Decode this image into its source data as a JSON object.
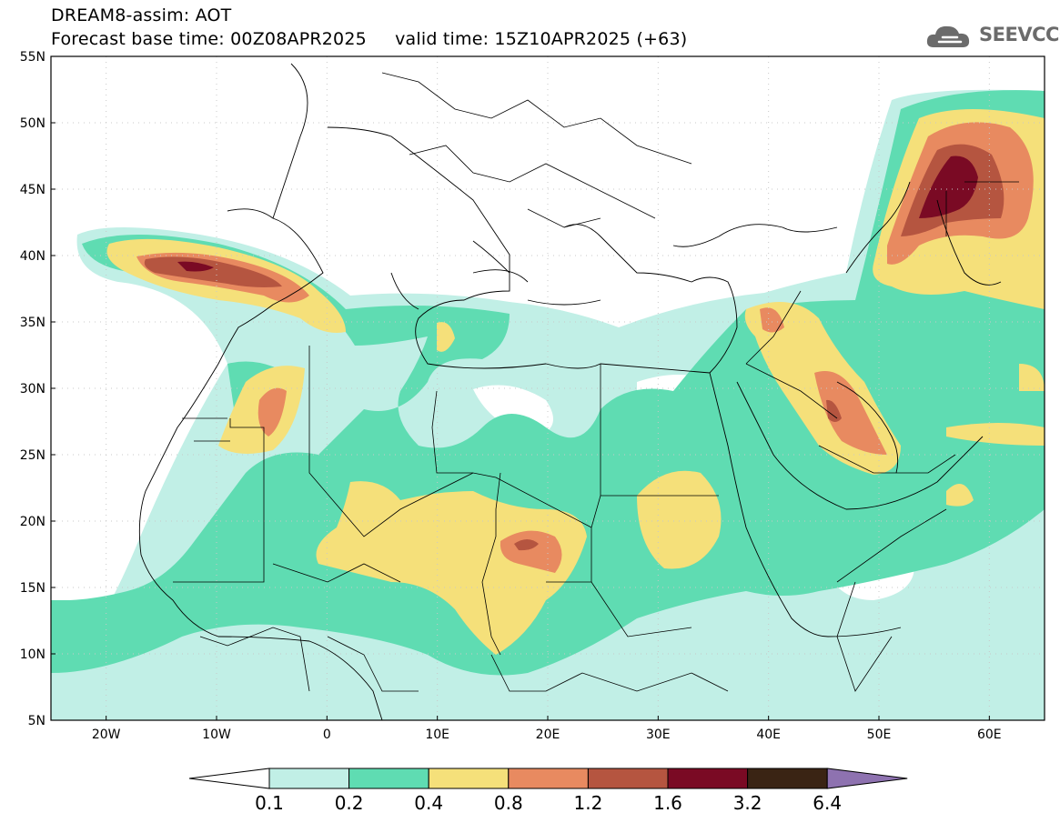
{
  "title": {
    "line1": "DREAM8-assim: AOT",
    "line2": "Forecast base time: 00Z08APR2025     valid time: 15Z10APR2025 (+63)"
  },
  "logo": {
    "text": "SEEVCCC",
    "icon": "cloud-logo-icon"
  },
  "axes": {
    "lat_labels": [
      "55N",
      "50N",
      "45N",
      "40N",
      "35N",
      "30N",
      "25N",
      "20N",
      "15N",
      "10N",
      "5N"
    ],
    "lat_values": [
      55,
      50,
      45,
      40,
      35,
      30,
      25,
      20,
      15,
      10,
      5
    ],
    "lon_labels": [
      "20W",
      "10W",
      "0",
      "10E",
      "20E",
      "30E",
      "40E",
      "50E",
      "60E"
    ],
    "lon_values": [
      -20,
      -10,
      0,
      10,
      20,
      30,
      40,
      50,
      60
    ],
    "lon_range": [
      -25,
      65
    ],
    "lat_range": [
      5,
      55
    ]
  },
  "colorbar": {
    "labels": [
      "0.1",
      "0.2",
      "0.4",
      "0.8",
      "1.2",
      "1.6",
      "3.2",
      "6.4"
    ],
    "colors": [
      "#ffffff",
      "#c1efe6",
      "#5fdcb2",
      "#f5e07a",
      "#e88a60",
      "#b55540",
      "#7a0a24",
      "#3a2414",
      "#8e72b0"
    ]
  },
  "map_colors": {
    "c1": "#c1efe6",
    "c2": "#5fdcb2",
    "c3": "#f5e07a",
    "c4": "#e88a60",
    "c5": "#b55540",
    "c6": "#7a0a24"
  }
}
